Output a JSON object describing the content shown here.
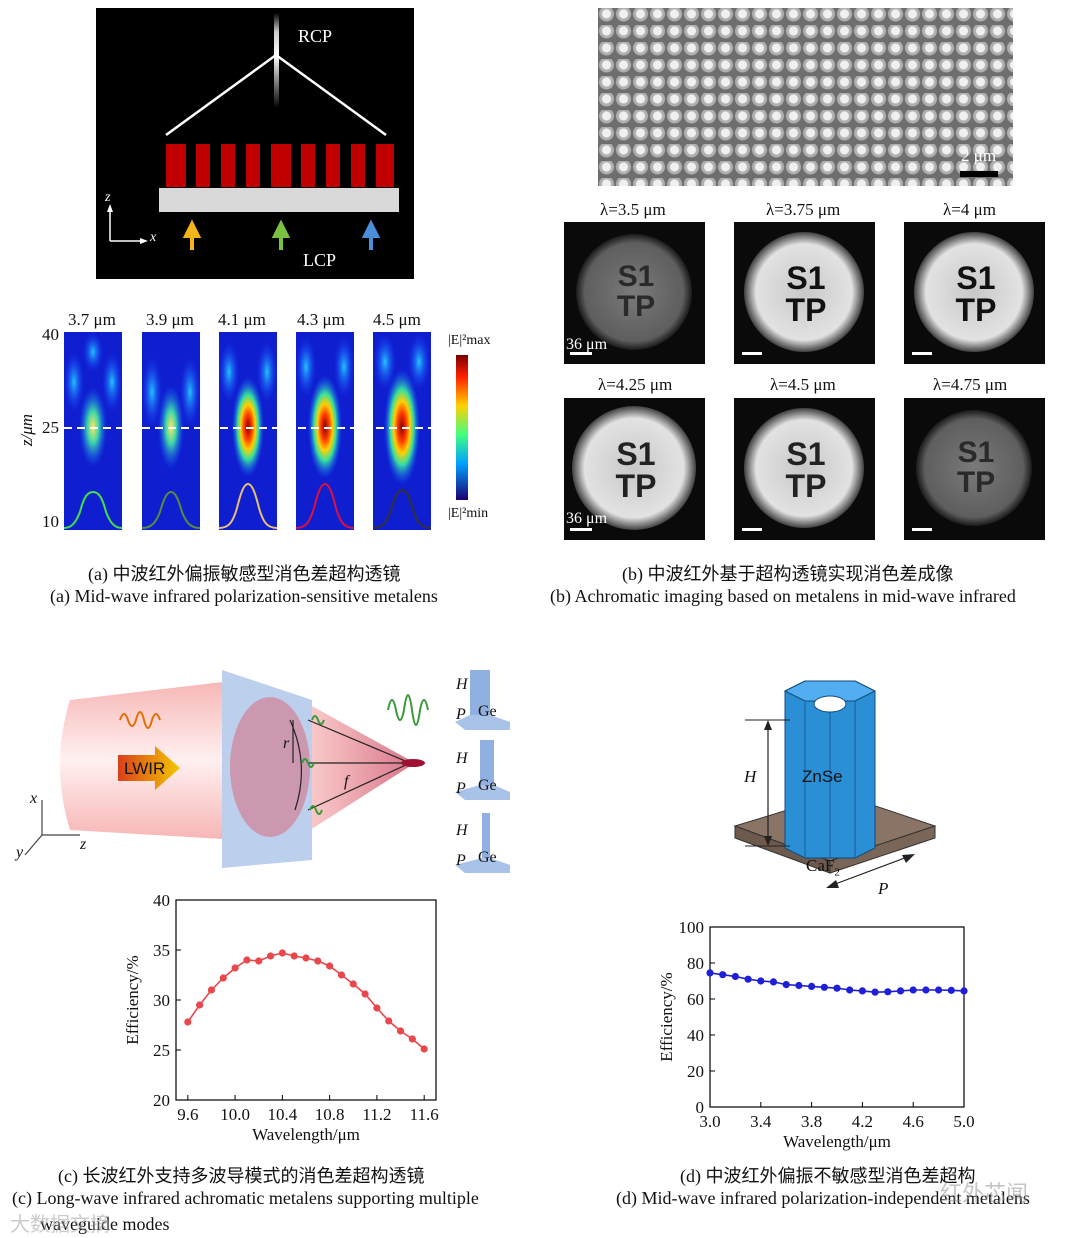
{
  "panel_a": {
    "schematic": {
      "top_label": "RCP",
      "bottom_label": "LCP",
      "axis_z": "z",
      "axis_x": "x"
    },
    "wavelengths": [
      "3.7 μm",
      "3.9 μm",
      "4.1 μm",
      "4.3 μm",
      "4.5 μm"
    ],
    "yaxis_label": "z/μm",
    "yticks": [
      "40",
      "25",
      "10"
    ],
    "colorbar_max": "|E|²max",
    "colorbar_min": "|E|²min",
    "caption_cn": "(a) 中波红外偏振敏感型消色差超构透镜",
    "caption_en": "(a) Mid-wave infrared polarization-sensitive metalens"
  },
  "panel_b": {
    "scale_sem": "2 μm",
    "images": [
      {
        "label": "λ=3.5 μm",
        "scale": "36 μm"
      },
      {
        "label": "λ=3.75 μm",
        "scale": ""
      },
      {
        "label": "λ=4 μm",
        "scale": ""
      },
      {
        "label": "λ=4.25 μm",
        "scale": ""
      },
      {
        "label": "λ=4.5 μm",
        "scale": ""
      },
      {
        "label": "λ=4.75 μm",
        "scale": ""
      }
    ],
    "letter_text": [
      "S1",
      "TP"
    ],
    "scale_img2": "36 μm",
    "caption_cn": "(b) 中波红外基于超构透镜实现消色差成像",
    "caption_en": "(b) Achromatic imaging based on metalens in mid-wave infrared"
  },
  "panel_c": {
    "schematic": {
      "beam_label": "LWIR",
      "r": "r",
      "f": "f",
      "x": "x",
      "y": "y",
      "z": "z",
      "H": "H",
      "P": "P",
      "Ge": "Ge"
    },
    "caption_cn": "(c) 长波红外支持多波导模式的消色差超构透镜",
    "caption_en_1": "(c) Long-wave infrared achromatic metalens supporting multiple",
    "caption_en_2": "waveguide modes"
  },
  "panel_d": {
    "schematic": {
      "H": "H",
      "pillar": "ZnSe",
      "substrate": "CaF",
      "substrate_sub": "2",
      "P": "P"
    },
    "caption_cn": "(d) 中波红外偏振不敏感型消色差超构",
    "caption_en": "(d) Mid-wave infrared polarization-independent metalens"
  },
  "watermark_left": "大数据文摘",
  "watermark_right": "红外芯闻",
  "chart_data": [
    {
      "type": "line",
      "title": "",
      "xlabel": "Wavelength/μm",
      "ylabel": "Efficiency/%",
      "xlim": [
        9.5,
        11.7
      ],
      "ylim": [
        20,
        40
      ],
      "xticks": [
        "9.6",
        "10.0",
        "10.4",
        "10.8",
        "11.2",
        "11.6"
      ],
      "yticks": [
        "20",
        "25",
        "30",
        "35",
        "40"
      ],
      "color": "#e8474b",
      "x": [
        9.6,
        9.7,
        9.8,
        9.9,
        10.0,
        10.1,
        10.2,
        10.3,
        10.4,
        10.5,
        10.6,
        10.7,
        10.8,
        10.9,
        11.0,
        11.1,
        11.2,
        11.3,
        11.4,
        11.5,
        11.6
      ],
      "y": [
        27.8,
        29.5,
        31.0,
        32.2,
        33.2,
        34.0,
        33.9,
        34.4,
        34.7,
        34.4,
        34.2,
        33.9,
        33.4,
        32.5,
        31.6,
        30.6,
        29.2,
        27.9,
        26.9,
        26.1,
        25.1
      ]
    },
    {
      "type": "line",
      "title": "",
      "xlabel": "Wavelength/μm",
      "ylabel": "Efficiency/%",
      "xlim": [
        3.0,
        5.0
      ],
      "ylim": [
        0,
        100
      ],
      "xticks": [
        "3.0",
        "3.4",
        "3.8",
        "4.2",
        "4.6",
        "5.0"
      ],
      "yticks": [
        "0",
        "20",
        "40",
        "60",
        "80",
        "100"
      ],
      "color": "#1f1fd6",
      "x": [
        3.0,
        3.1,
        3.2,
        3.3,
        3.4,
        3.5,
        3.6,
        3.7,
        3.8,
        3.9,
        4.0,
        4.1,
        4.2,
        4.3,
        4.4,
        4.5,
        4.6,
        4.7,
        4.8,
        4.9,
        5.0
      ],
      "y": [
        74.5,
        73.5,
        72.5,
        71.0,
        70.0,
        69.5,
        68.0,
        67.5,
        67.0,
        66.5,
        66.0,
        65.0,
        64.5,
        63.8,
        64.0,
        64.5,
        65.0,
        65.0,
        65.0,
        64.8,
        64.5
      ]
    }
  ]
}
